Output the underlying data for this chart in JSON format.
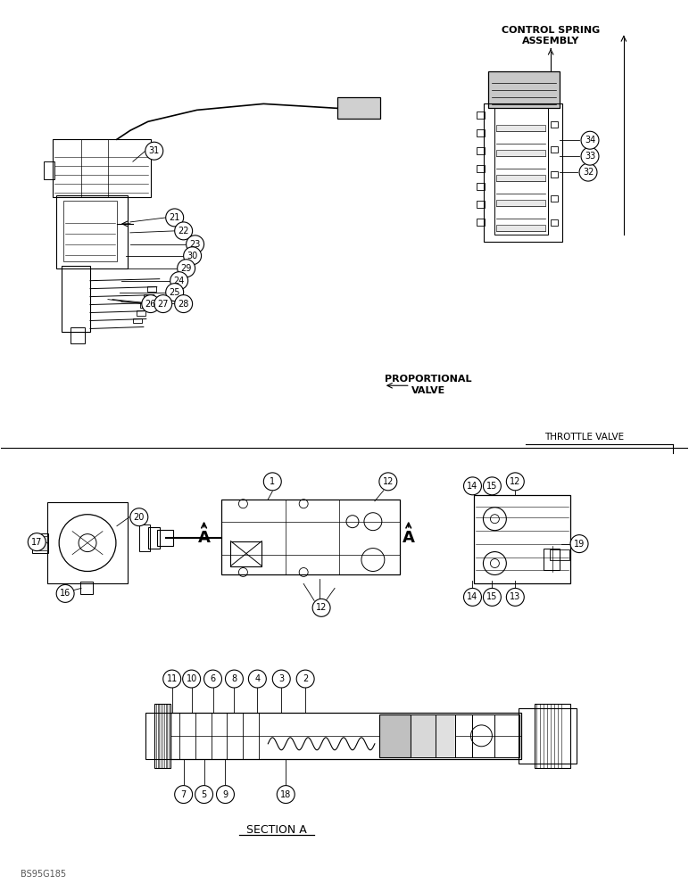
{
  "bg_color": "#ffffff",
  "line_color": "#000000",
  "fig_width": 7.72,
  "fig_height": 10.0,
  "dpi": 100,
  "labels": {
    "control_spring_1": "CONTROL SPRING",
    "control_spring_2": "ASSEMBLY",
    "proportional_1": "PROPORTIONAL",
    "proportional_2": "VALVE",
    "throttle_valve": "THROTTLE VALVE",
    "section_a": "SECTION A",
    "footer": "BS95G185",
    "A_left": "A",
    "A_right": "A"
  }
}
